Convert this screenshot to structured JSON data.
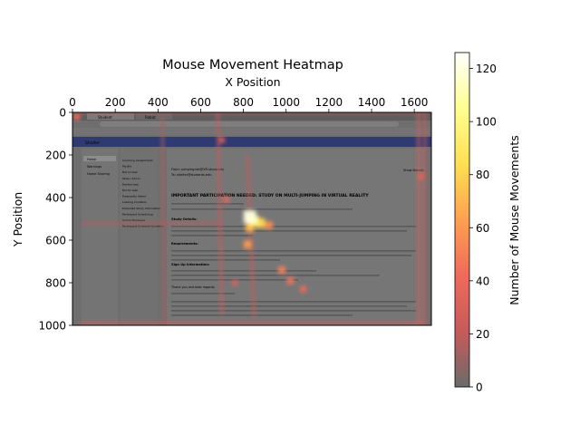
{
  "chart_data": {
    "type": "heatmap",
    "title": "Mouse Movement Heatmap",
    "xlabel": "X Position",
    "ylabel": "Y Position",
    "colorbar_label": "Number of Mouse Movements",
    "xlim": [
      0,
      1680
    ],
    "ylim": [
      1000,
      0
    ],
    "x_ticks": [
      "0",
      "200",
      "400",
      "600",
      "800",
      "1000",
      "1200",
      "1400",
      "1600"
    ],
    "x_tick_values": [
      0,
      200,
      400,
      600,
      800,
      1000,
      1200,
      1400,
      1600
    ],
    "y_ticks": [
      "0",
      "200",
      "400",
      "600",
      "800",
      "1000"
    ],
    "y_tick_values": [
      0,
      200,
      400,
      600,
      800,
      1000
    ],
    "colorbar_range": [
      0,
      126
    ],
    "colorbar_ticks": [
      "0",
      "20",
      "40",
      "60",
      "80",
      "100",
      "120"
    ],
    "colorbar_tick_values": [
      0,
      20,
      40,
      60,
      80,
      100,
      120
    ],
    "colormap": [
      "#6b6b6b",
      "#c85a5a",
      "#f06a5a",
      "#ffa050",
      "#ffe050",
      "#ffff90",
      "#ffffff"
    ],
    "x_axis_position": "top",
    "y_axis_inverted": true,
    "grid": false,
    "background": "browser page screenshot (dimmed)",
    "hotspots": [
      {
        "x": 830,
        "y": 490,
        "value": 120
      },
      {
        "x": 850,
        "y": 510,
        "value": 95
      },
      {
        "x": 880,
        "y": 520,
        "value": 80
      },
      {
        "x": 830,
        "y": 540,
        "value": 70
      },
      {
        "x": 820,
        "y": 620,
        "value": 60
      },
      {
        "x": 920,
        "y": 530,
        "value": 55
      },
      {
        "x": 980,
        "y": 740,
        "value": 50
      },
      {
        "x": 1020,
        "y": 790,
        "value": 45
      },
      {
        "x": 1080,
        "y": 830,
        "value": 40
      },
      {
        "x": 1630,
        "y": 300,
        "value": 35
      },
      {
        "x": 20,
        "y": 20,
        "value": 40
      },
      {
        "x": 700,
        "y": 130,
        "value": 30
      },
      {
        "x": 720,
        "y": 410,
        "value": 35
      },
      {
        "x": 760,
        "y": 800,
        "value": 30
      }
    ],
    "paths": [
      {
        "from": [
          30,
          990
        ],
        "to": [
          1660,
          990
        ],
        "value": 25
      },
      {
        "from": [
          1620,
          0
        ],
        "to": [
          1620,
          1000
        ],
        "value": 28
      },
      {
        "from": [
          1650,
          0
        ],
        "to": [
          1650,
          1000
        ],
        "value": 22
      },
      {
        "from": [
          680,
          0
        ],
        "to": [
          700,
          950
        ],
        "value": 22
      },
      {
        "from": [
          420,
          20
        ],
        "to": [
          430,
          980
        ],
        "value": 15
      },
      {
        "from": [
          820,
          200
        ],
        "to": [
          850,
          960
        ],
        "value": 22
      },
      {
        "from": [
          40,
          520
        ],
        "to": [
          700,
          520
        ],
        "value": 18
      },
      {
        "from": [
          40,
          0
        ],
        "to": [
          1660,
          0
        ],
        "value": 20
      }
    ]
  },
  "screenshot": {
    "tabs": [
      "Student",
      "Robot"
    ],
    "banner": "Shalter",
    "sidebar_items": [
      "Home",
      "Warnings",
      "Home Sharing"
    ],
    "submenu_items": [
      "Incoming assignments",
      "My Bid",
      "Bid on task",
      "Tasks I bid on",
      "Review task",
      "Bid for task",
      "Frequently Asked",
      "Loading Condition",
      "Extended Study Information",
      "Participant Scheduling",
      "Online Messages",
      "Participant Schedule Guideline"
    ],
    "from_line": "From: jumping.lab@VR-study.edu",
    "to_line": "To: shelter@students.edu",
    "show_details": "Show Details",
    "heading": "IMPORTANT PARTICIPATION NEEDED: STUDY ON MULTI-JUMPING IN VIRTUAL REALITY",
    "sections": [
      "Study Details:",
      "Requirements:",
      "Sign Up Information:"
    ],
    "signoff": "Thank you and best regards,"
  }
}
